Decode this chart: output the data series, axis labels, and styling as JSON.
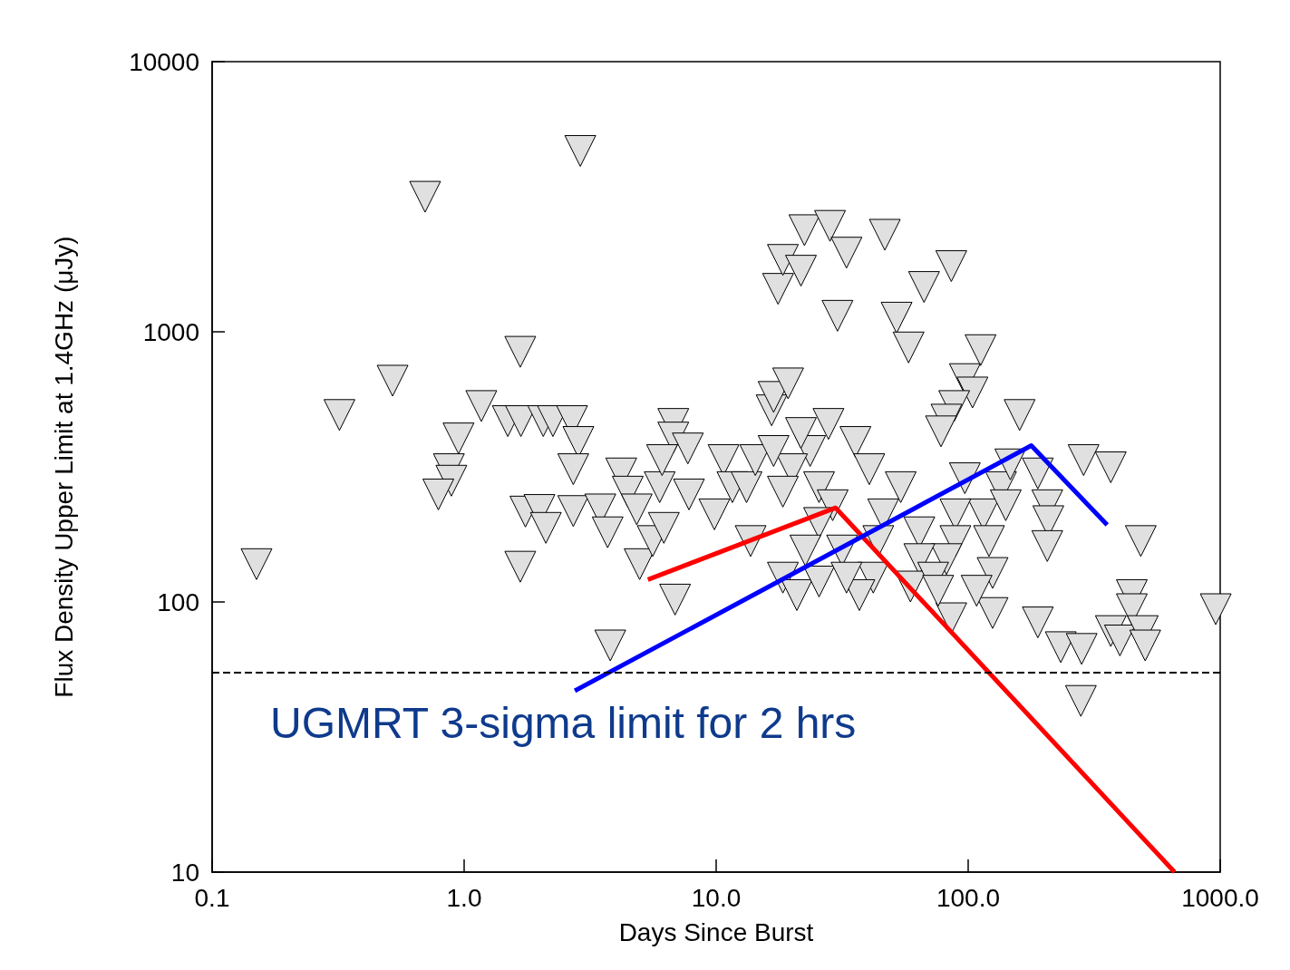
{
  "chart_data": {
    "type": "scatter",
    "xlabel": "Days Since Burst",
    "ylabel": "Flux Density Upper Limit at 1.4GHz (μJy)",
    "log": "xy",
    "grid": false,
    "xlim": [
      0.1,
      1000
    ],
    "xticks": [
      {
        "value": 0.1,
        "label": "0.1"
      },
      {
        "value": 1,
        "label": "1.0"
      },
      {
        "value": 10,
        "label": "10.0"
      },
      {
        "value": 100,
        "label": "100.0"
      },
      {
        "value": 1000,
        "label": "1000.0"
      }
    ],
    "ylim": [
      10,
      10000
    ],
    "yticks": [
      10,
      100,
      1000,
      10000
    ],
    "ref_lines": [
      {
        "axis": "y",
        "value": 55,
        "label": "UGMRT 3-sigma limit for 2 hrs",
        "color": "#000000",
        "line_style": "dashed"
      }
    ],
    "series": [
      {
        "marker": "triangle",
        "color": "#e0e0e0",
        "x": [
          0.15,
          0.32,
          0.52,
          0.7,
          2.89,
          1.67,
          1.17,
          0.95,
          0.87,
          0.89,
          0.79,
          1.49,
          1.68,
          2.06,
          2.25,
          2.68,
          2.84,
          2.71,
          1.75,
          1.99,
          2.11,
          2.71,
          1.67,
          3.47,
          3.71,
          3.8,
          4.2,
          4.46,
          4.84,
          4.97,
          5.6,
          5.97,
          6.76,
          6.76,
          7.72,
          6.1,
          6.87,
          6.2,
          7.8,
          9.84,
          10.7,
          11.6,
          13.7,
          13.2,
          14.3,
          16.6,
          16.9,
          19.3,
          17.6,
          18.4,
          21.7,
          22.4,
          28.3,
          32.9,
          30.3,
          46.7,
          52,
          58,
          66.8,
          85.7,
          112,
          97,
          104,
          88,
          82,
          78,
          160,
          287,
          368,
          189,
          206,
          208,
          206,
          484,
          189,
          233,
          282,
          280,
          368,
          400,
          446,
          446,
          493,
          504,
          960,
          125,
          85.7,
          135,
          115,
          121,
          125,
          97,
          89,
          89,
          82,
          64,
          64,
          59,
          54,
          46,
          44,
          42,
          37,
          35.7,
          40.5,
          27.9,
          25.6,
          23.6,
          21.7,
          20,
          18.4,
          16.9,
          29,
          25.6,
          22.6,
          18.4,
          20.9,
          25.6,
          31.6,
          32.9,
          72.6,
          76,
          108,
          141,
          147
        ],
        "values": [
          138,
          492,
          659,
          3160,
          4670,
          843,
          531,
          403,
          310,
          281,
          250,
          467,
          467,
          467,
          467,
          467,
          391,
          310,
          216,
          219,
          188,
          217,
          135,
          220,
          181,
          69,
          299,
          256,
          220,
          138,
          168,
          266,
          456,
          406,
          370,
          335,
          102,
          188,
          250,
          211,
          335,
          266,
          168,
          266,
          335,
          512,
          574,
          644,
          1442,
          1845,
          1683,
          2377,
          2466,
          1963,
          1146,
          2286,
          1128,
          875,
          1465,
          1750,
          855,
          668,
          596,
          531,
          473,
          428,
          492,
          335,
          315,
          299,
          228,
          199,
          161,
          168,
          84,
          68,
          67,
          43,
          78,
          72,
          106,
          94,
          78,
          69,
          94,
          91,
          87,
          266,
          211,
          168,
          128,
          287,
          211,
          168,
          144,
          181,
          144,
          114,
          266,
          211,
          168,
          123,
          106,
          391,
          310,
          456,
          266,
          362,
          422,
          310,
          256,
          362,
          228,
          196,
          155,
          123,
          106,
          119,
          155,
          123,
          123,
          110,
          110,
          228,
          323
        ]
      },
      {
        "type": "line",
        "color": "#ff0000",
        "x": [
          5.36,
          29.8,
          659
        ],
        "values": [
          121,
          223,
          10
        ]
      },
      {
        "type": "line",
        "color": "#0000ff",
        "x": [
          2.75,
          178,
          356
        ],
        "values": [
          46.9,
          379,
          193
        ]
      }
    ]
  }
}
